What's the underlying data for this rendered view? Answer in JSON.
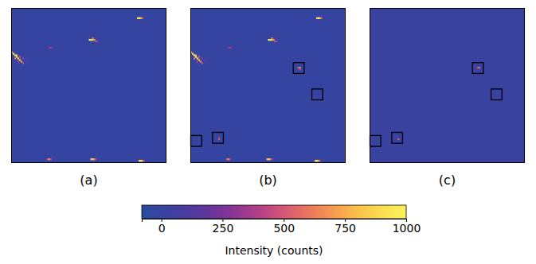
{
  "chart_data": [
    {
      "type": "heatmap",
      "title": "(a)",
      "shape": [
        100,
        100
      ],
      "background": 0,
      "cells": [
        [
          81,
          6,
          900
        ],
        [
          82,
          6,
          1000
        ],
        [
          83,
          6,
          800
        ],
        [
          84,
          6,
          500
        ],
        [
          50,
          20,
          1000
        ],
        [
          51,
          20,
          1000
        ],
        [
          52,
          20,
          900
        ],
        [
          53,
          20,
          700
        ],
        [
          54,
          21,
          500
        ],
        [
          55,
          21,
          350
        ],
        [
          52,
          19,
          600
        ],
        [
          24,
          25,
          300
        ],
        [
          25,
          25,
          400
        ],
        [
          26,
          25,
          250
        ],
        [
          0,
          28,
          700
        ],
        [
          1,
          29,
          900
        ],
        [
          2,
          30,
          1000
        ],
        [
          3,
          31,
          1000
        ],
        [
          4,
          32,
          900
        ],
        [
          5,
          33,
          800
        ],
        [
          6,
          34,
          700
        ],
        [
          7,
          35,
          500
        ],
        [
          3,
          30,
          800
        ],
        [
          5,
          31,
          500
        ],
        [
          7,
          32,
          350
        ],
        [
          9,
          33,
          250
        ],
        [
          11,
          34,
          200
        ],
        [
          2,
          32,
          600
        ],
        [
          4,
          34,
          400
        ],
        [
          23,
          97,
          500
        ],
        [
          24,
          97,
          700
        ],
        [
          25,
          97,
          400
        ],
        [
          51,
          97,
          800
        ],
        [
          52,
          97,
          1000
        ],
        [
          53,
          97,
          700
        ],
        [
          54,
          97,
          400
        ],
        [
          82,
          98,
          900
        ],
        [
          83,
          98,
          1000
        ],
        [
          84,
          98,
          800
        ],
        [
          85,
          98,
          400
        ]
      ],
      "regions": []
    },
    {
      "type": "heatmap",
      "title": "(b)",
      "shape": [
        100,
        100
      ],
      "background": 0,
      "cells": [
        [
          81,
          6,
          900
        ],
        [
          82,
          6,
          1000
        ],
        [
          83,
          6,
          800
        ],
        [
          84,
          6,
          500
        ],
        [
          50,
          20,
          1000
        ],
        [
          51,
          20,
          1000
        ],
        [
          52,
          20,
          900
        ],
        [
          53,
          20,
          700
        ],
        [
          54,
          21,
          500
        ],
        [
          55,
          21,
          350
        ],
        [
          52,
          19,
          600
        ],
        [
          24,
          25,
          300
        ],
        [
          25,
          25,
          400
        ],
        [
          26,
          25,
          250
        ],
        [
          0,
          28,
          700
        ],
        [
          1,
          29,
          900
        ],
        [
          2,
          30,
          1000
        ],
        [
          3,
          31,
          1000
        ],
        [
          4,
          32,
          900
        ],
        [
          5,
          33,
          800
        ],
        [
          6,
          34,
          700
        ],
        [
          7,
          35,
          500
        ],
        [
          3,
          30,
          800
        ],
        [
          5,
          31,
          500
        ],
        [
          7,
          32,
          350
        ],
        [
          9,
          33,
          250
        ],
        [
          11,
          34,
          200
        ],
        [
          2,
          32,
          600
        ],
        [
          4,
          34,
          400
        ],
        [
          23,
          97,
          500
        ],
        [
          24,
          97,
          700
        ],
        [
          25,
          97,
          400
        ],
        [
          49,
          97,
          800
        ],
        [
          50,
          97,
          1000
        ],
        [
          51,
          97,
          700
        ],
        [
          52,
          97,
          400
        ],
        [
          80,
          98,
          900
        ],
        [
          81,
          98,
          1000
        ],
        [
          82,
          98,
          800
        ],
        [
          83,
          98,
          400
        ],
        [
          69,
          38,
          500
        ],
        [
          70,
          38,
          700
        ],
        [
          70,
          39,
          400
        ],
        [
          18,
          84,
          500
        ],
        [
          18,
          83,
          300
        ]
      ],
      "regions": [
        [
          66,
          35,
          7,
          7
        ],
        [
          78,
          52,
          7,
          7
        ],
        [
          0,
          82,
          7,
          7
        ],
        [
          14,
          80,
          7,
          7
        ]
      ]
    },
    {
      "type": "heatmap",
      "title": "(c)",
      "shape": [
        100,
        100
      ],
      "background": 30,
      "cells": [
        [
          69,
          38,
          400
        ],
        [
          70,
          38,
          600
        ],
        [
          18,
          84,
          500
        ]
      ],
      "regions": [
        [
          66,
          35,
          7,
          7
        ],
        [
          78,
          52,
          7,
          7
        ],
        [
          0,
          82,
          7,
          7
        ],
        [
          14,
          80,
          7,
          7
        ]
      ]
    }
  ],
  "colorbar": {
    "label": "Intensity (counts)",
    "range": [
      -80,
      1000
    ],
    "ticks": [
      0,
      250,
      500,
      750,
      1000
    ]
  }
}
